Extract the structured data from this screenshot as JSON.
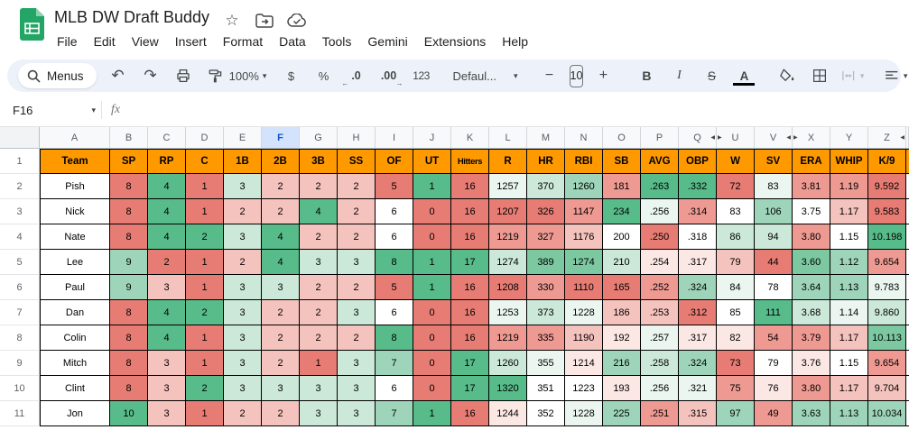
{
  "app": {
    "title": "MLB DW Draft Buddy",
    "menu_items": [
      "File",
      "Edit",
      "View",
      "Insert",
      "Format",
      "Data",
      "Tools",
      "Gemini",
      "Extensions",
      "Help"
    ]
  },
  "toolbar": {
    "menus_label": "Menus",
    "zoom": "100%",
    "currency": "$",
    "percent": "%",
    "decimal_decrease": ".0",
    "decimal_increase": ".00",
    "number_format": "123",
    "style_name": "Defaul...",
    "font_size": "10",
    "bold": "B",
    "italic": "I",
    "strikethrough": "S",
    "text_color": "A"
  },
  "formula_bar": {
    "name_box": "F16",
    "fx": "fx"
  },
  "grid": {
    "selected_column": "F",
    "header_bg": "#FF9900",
    "palette": {
      "R3": "#E67C73",
      "R2": "#EE9A92",
      "R1": "#F5C3BD",
      "R0": "#FBE7E4",
      "W0": "#FFFFFF",
      "G0": "#EBF6F0",
      "G1": "#CBE8D8",
      "G2": "#9ED5BA",
      "G2b": "#7BC8A1",
      "G3": "#57BB8A"
    },
    "columns": [
      {
        "letter": "A"
      },
      {
        "letter": "B"
      },
      {
        "letter": "C"
      },
      {
        "letter": "D"
      },
      {
        "letter": "E"
      },
      {
        "letter": "F",
        "selected": true
      },
      {
        "letter": "G"
      },
      {
        "letter": "H"
      },
      {
        "letter": "I"
      },
      {
        "letter": "J"
      },
      {
        "letter": "K"
      },
      {
        "letter": "L"
      },
      {
        "letter": "M"
      },
      {
        "letter": "N"
      },
      {
        "letter": "O"
      },
      {
        "letter": "P"
      },
      {
        "letter": "Q",
        "hidden_after": true
      },
      {
        "letter": "U",
        "hidden_before": true
      },
      {
        "letter": "V",
        "hidden_after": true
      },
      {
        "letter": "X",
        "hidden_before": true
      },
      {
        "letter": "Y"
      },
      {
        "letter": "Z",
        "hidden_after": true
      }
    ],
    "header": {
      "row_num": "1",
      "cells": [
        "Team",
        "SP",
        "RP",
        "C",
        "1B",
        "2B",
        "3B",
        "SS",
        "OF",
        "UT",
        "Hitters",
        "R",
        "HR",
        "RBI",
        "SB",
        "AVG",
        "OBP",
        "W",
        "SV",
        "ERA",
        "WHIP",
        "K/9"
      ]
    },
    "rows": [
      {
        "num": "2",
        "team": "Pish",
        "cells": [
          [
            "8",
            "R3"
          ],
          [
            "4",
            "G3"
          ],
          [
            "1",
            "R3"
          ],
          [
            "3",
            "G1"
          ],
          [
            "2",
            "R1"
          ],
          [
            "2",
            "R1"
          ],
          [
            "2",
            "R1"
          ],
          [
            "5",
            "R3"
          ],
          [
            "1",
            "G3"
          ],
          [
            "16",
            "R3"
          ],
          [
            "1257",
            "G0"
          ],
          [
            "370",
            "G1"
          ],
          [
            "1260",
            "G2"
          ],
          [
            "181",
            "R2"
          ],
          [
            ".263",
            "G3"
          ],
          [
            ".332",
            "G3"
          ],
          [
            "72",
            "R3"
          ],
          [
            "83",
            "G0"
          ],
          [
            "3.81",
            "R2"
          ],
          [
            "1.19",
            "R2"
          ],
          [
            "9.592",
            "R3"
          ]
        ]
      },
      {
        "num": "3",
        "team": "Nick",
        "cells": [
          [
            "8",
            "R3"
          ],
          [
            "4",
            "G3"
          ],
          [
            "1",
            "R3"
          ],
          [
            "2",
            "R1"
          ],
          [
            "2",
            "R1"
          ],
          [
            "4",
            "G3"
          ],
          [
            "2",
            "R1"
          ],
          [
            "6",
            "W0"
          ],
          [
            "0",
            "R3"
          ],
          [
            "16",
            "R3"
          ],
          [
            "1207",
            "R3"
          ],
          [
            "326",
            "R3"
          ],
          [
            "1147",
            "R2"
          ],
          [
            "234",
            "G3"
          ],
          [
            ".256",
            "G0"
          ],
          [
            ".314",
            "R2"
          ],
          [
            "83",
            "W0"
          ],
          [
            "106",
            "G2"
          ],
          [
            "3.75",
            "W0"
          ],
          [
            "1.17",
            "R1"
          ],
          [
            "9.583",
            "R3"
          ]
        ]
      },
      {
        "num": "4",
        "team": "Nate",
        "cells": [
          [
            "8",
            "R3"
          ],
          [
            "4",
            "G3"
          ],
          [
            "2",
            "G3"
          ],
          [
            "3",
            "G1"
          ],
          [
            "4",
            "G3"
          ],
          [
            "2",
            "R1"
          ],
          [
            "2",
            "R1"
          ],
          [
            "6",
            "W0"
          ],
          [
            "0",
            "R3"
          ],
          [
            "16",
            "R3"
          ],
          [
            "1219",
            "R2"
          ],
          [
            "327",
            "R2"
          ],
          [
            "1176",
            "R1"
          ],
          [
            "200",
            "W0"
          ],
          [
            ".250",
            "R3"
          ],
          [
            ".318",
            "W0"
          ],
          [
            "86",
            "G1"
          ],
          [
            "94",
            "G1"
          ],
          [
            "3.80",
            "R2"
          ],
          [
            "1.15",
            "W0"
          ],
          [
            "10.198",
            "G3"
          ]
        ]
      },
      {
        "num": "5",
        "team": "Lee",
        "cells": [
          [
            "9",
            "G2"
          ],
          [
            "2",
            "R3"
          ],
          [
            "1",
            "R3"
          ],
          [
            "2",
            "R1"
          ],
          [
            "4",
            "G3"
          ],
          [
            "3",
            "G1"
          ],
          [
            "3",
            "G1"
          ],
          [
            "8",
            "G3"
          ],
          [
            "1",
            "G3"
          ],
          [
            "17",
            "G3"
          ],
          [
            "1274",
            "G1"
          ],
          [
            "389",
            "G2b"
          ],
          [
            "1274",
            "G2b"
          ],
          [
            "210",
            "G1"
          ],
          [
            ".254",
            "R0"
          ],
          [
            ".317",
            "R0"
          ],
          [
            "79",
            "R1"
          ],
          [
            "44",
            "R3"
          ],
          [
            "3.60",
            "G2b"
          ],
          [
            "1.12",
            "G2"
          ],
          [
            "9.654",
            "R2"
          ]
        ]
      },
      {
        "num": "6",
        "team": "Paul",
        "cells": [
          [
            "9",
            "G2"
          ],
          [
            "3",
            "R1"
          ],
          [
            "1",
            "R3"
          ],
          [
            "3",
            "G1"
          ],
          [
            "3",
            "G1"
          ],
          [
            "2",
            "R1"
          ],
          [
            "2",
            "R1"
          ],
          [
            "5",
            "R3"
          ],
          [
            "1",
            "G3"
          ],
          [
            "16",
            "R3"
          ],
          [
            "1208",
            "R3"
          ],
          [
            "330",
            "R2"
          ],
          [
            "1110",
            "R3"
          ],
          [
            "165",
            "R3"
          ],
          [
            ".252",
            "R2"
          ],
          [
            ".324",
            "G2"
          ],
          [
            "84",
            "G0"
          ],
          [
            "78",
            "W0"
          ],
          [
            "3.64",
            "G2"
          ],
          [
            "1.13",
            "G2"
          ],
          [
            "9.783",
            "G0"
          ]
        ]
      },
      {
        "num": "7",
        "team": "Dan",
        "cells": [
          [
            "8",
            "R3"
          ],
          [
            "4",
            "G3"
          ],
          [
            "2",
            "G3"
          ],
          [
            "3",
            "G1"
          ],
          [
            "2",
            "R1"
          ],
          [
            "2",
            "R1"
          ],
          [
            "3",
            "G1"
          ],
          [
            "6",
            "W0"
          ],
          [
            "0",
            "R3"
          ],
          [
            "16",
            "R3"
          ],
          [
            "1253",
            "G0"
          ],
          [
            "373",
            "G1"
          ],
          [
            "1228",
            "G0"
          ],
          [
            "186",
            "R1"
          ],
          [
            ".253",
            "R1"
          ],
          [
            ".312",
            "R3"
          ],
          [
            "85",
            "W0"
          ],
          [
            "111",
            "G3"
          ],
          [
            "3.68",
            "G1"
          ],
          [
            "1.14",
            "G0"
          ],
          [
            "9.860",
            "G1"
          ]
        ]
      },
      {
        "num": "8",
        "team": "Colin",
        "cells": [
          [
            "8",
            "R3"
          ],
          [
            "4",
            "G3"
          ],
          [
            "1",
            "R3"
          ],
          [
            "3",
            "G1"
          ],
          [
            "2",
            "R1"
          ],
          [
            "2",
            "R1"
          ],
          [
            "2",
            "R1"
          ],
          [
            "8",
            "G3"
          ],
          [
            "0",
            "R3"
          ],
          [
            "16",
            "R3"
          ],
          [
            "1219",
            "R2"
          ],
          [
            "335",
            "R2"
          ],
          [
            "1190",
            "R1"
          ],
          [
            "192",
            "R0"
          ],
          [
            ".257",
            "G0"
          ],
          [
            ".317",
            "R0"
          ],
          [
            "82",
            "R0"
          ],
          [
            "54",
            "R2"
          ],
          [
            "3.79",
            "R2"
          ],
          [
            "1.17",
            "R1"
          ],
          [
            "10.113",
            "G2b"
          ]
        ]
      },
      {
        "num": "9",
        "team": "Mitch",
        "cells": [
          [
            "8",
            "R3"
          ],
          [
            "3",
            "R1"
          ],
          [
            "1",
            "R3"
          ],
          [
            "3",
            "G1"
          ],
          [
            "2",
            "R1"
          ],
          [
            "1",
            "R3"
          ],
          [
            "3",
            "G1"
          ],
          [
            "7",
            "G2"
          ],
          [
            "0",
            "R3"
          ],
          [
            "17",
            "G3"
          ],
          [
            "1260",
            "G1"
          ],
          [
            "355",
            "G0"
          ],
          [
            "1214",
            "R0"
          ],
          [
            "216",
            "G2"
          ],
          [
            ".258",
            "G1"
          ],
          [
            ".324",
            "G2"
          ],
          [
            "73",
            "R3"
          ],
          [
            "79",
            "W0"
          ],
          [
            "3.76",
            "R0"
          ],
          [
            "1.15",
            "W0"
          ],
          [
            "9.654",
            "R2"
          ]
        ]
      },
      {
        "num": "10",
        "team": "Clint",
        "cells": [
          [
            "8",
            "R3"
          ],
          [
            "3",
            "R1"
          ],
          [
            "2",
            "G3"
          ],
          [
            "3",
            "G1"
          ],
          [
            "3",
            "G1"
          ],
          [
            "3",
            "G1"
          ],
          [
            "3",
            "G1"
          ],
          [
            "6",
            "W0"
          ],
          [
            "0",
            "R3"
          ],
          [
            "17",
            "G3"
          ],
          [
            "1320",
            "G3"
          ],
          [
            "351",
            "W0"
          ],
          [
            "1223",
            "W0"
          ],
          [
            "193",
            "R0"
          ],
          [
            ".256",
            "G0"
          ],
          [
            ".321",
            "G0"
          ],
          [
            "75",
            "R2"
          ],
          [
            "76",
            "R0"
          ],
          [
            "3.80",
            "R2"
          ],
          [
            "1.17",
            "R1"
          ],
          [
            "9.704",
            "R1"
          ]
        ]
      },
      {
        "num": "11",
        "team": "Jon",
        "cells": [
          [
            "10",
            "G3"
          ],
          [
            "3",
            "R1"
          ],
          [
            "1",
            "R3"
          ],
          [
            "2",
            "R1"
          ],
          [
            "2",
            "R1"
          ],
          [
            "3",
            "G1"
          ],
          [
            "3",
            "G1"
          ],
          [
            "7",
            "G2"
          ],
          [
            "1",
            "G3"
          ],
          [
            "16",
            "R3"
          ],
          [
            "1244",
            "R0"
          ],
          [
            "352",
            "W0"
          ],
          [
            "1228",
            "G0"
          ],
          [
            "225",
            "G2"
          ],
          [
            ".251",
            "R2"
          ],
          [
            ".315",
            "R1"
          ],
          [
            "97",
            "G2"
          ],
          [
            "49",
            "R2"
          ],
          [
            "3.63",
            "G2"
          ],
          [
            "1.13",
            "G2"
          ],
          [
            "10.034",
            "G2"
          ]
        ]
      }
    ]
  }
}
